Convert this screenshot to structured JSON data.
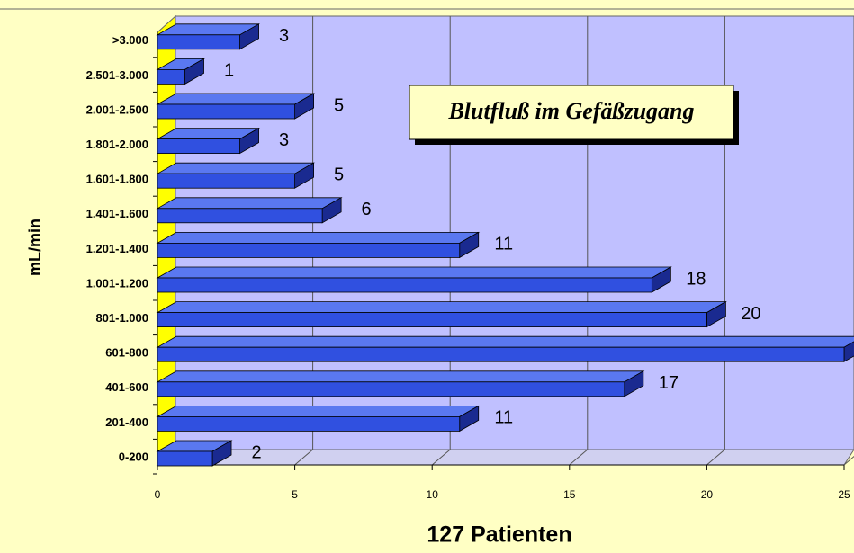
{
  "chart_data": {
    "type": "bar",
    "orientation": "horizontal",
    "title": "Blutfluß im Gefäßzugang",
    "xlabel": "127 Patienten",
    "ylabel": "mL/min",
    "categories": [
      "0-200",
      "201-400",
      "401-600",
      "601-800",
      "801-1.000",
      "1.001-1.200",
      "1.201-1.400",
      "1.401-1.600",
      "1.601-1.800",
      "1.801-2.000",
      "2.001-2.500",
      "2.501-3.000",
      ">3.000"
    ],
    "values": [
      2,
      11,
      17,
      25,
      20,
      18,
      11,
      6,
      5,
      3,
      5,
      1,
      3
    ],
    "color": "#3050e0",
    "xlim": [
      0,
      25
    ],
    "xticks": [
      0,
      5,
      10,
      15,
      20,
      25
    ],
    "grid": true
  }
}
